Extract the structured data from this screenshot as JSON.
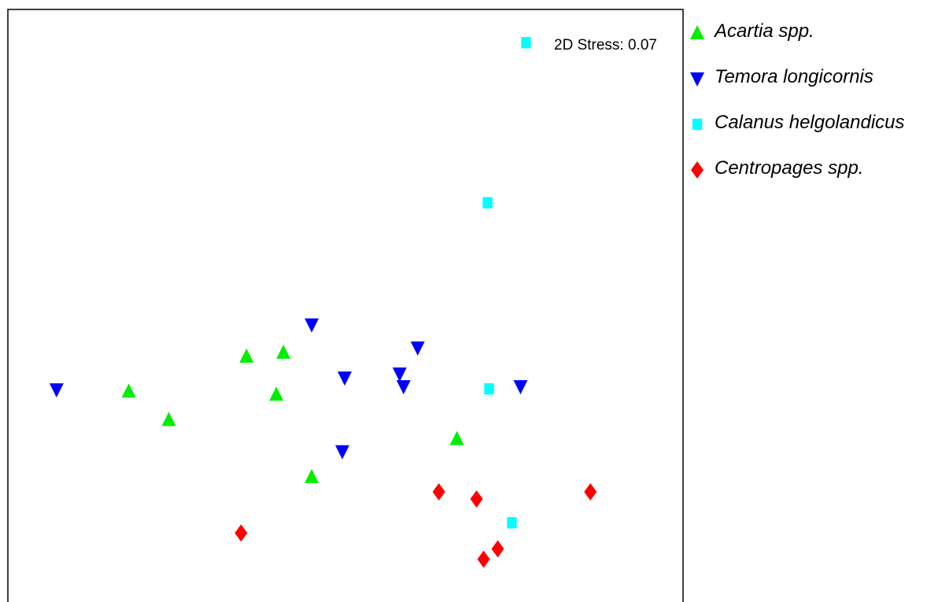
{
  "chart_data": {
    "type": "scatter",
    "title": "",
    "xlabel": "",
    "ylabel": "",
    "annotation": "2D Stress: 0.07",
    "axes_ticks": false,
    "grid": false,
    "legend_position": "right",
    "xlim": [
      0,
      860
    ],
    "ylim": [
      0,
      755
    ],
    "series": [
      {
        "name": "Acartia spp.",
        "marker": "triangle-up",
        "color": "#00ee00",
        "points": [
          {
            "x": 154,
            "y": 273
          },
          {
            "x": 205,
            "y": 237
          },
          {
            "x": 304,
            "y": 317
          },
          {
            "x": 351,
            "y": 322
          },
          {
            "x": 342,
            "y": 269
          },
          {
            "x": 387,
            "y": 165
          },
          {
            "x": 572,
            "y": 213
          }
        ]
      },
      {
        "name": "Temora longicornis",
        "marker": "triangle-down",
        "color": "#0000ff",
        "points": [
          {
            "x": 62,
            "y": 275
          },
          {
            "x": 387,
            "y": 357
          },
          {
            "x": 429,
            "y": 290
          },
          {
            "x": 426,
            "y": 197
          },
          {
            "x": 499,
            "y": 295
          },
          {
            "x": 504,
            "y": 279
          },
          {
            "x": 522,
            "y": 328
          },
          {
            "x": 653,
            "y": 279
          }
        ]
      },
      {
        "name": "Calanus helgolandicus",
        "marker": "square",
        "color": "#00ffff",
        "points": [
          {
            "x": 660,
            "y": 713
          },
          {
            "x": 611,
            "y": 511
          },
          {
            "x": 613,
            "y": 276
          },
          {
            "x": 642,
            "y": 107
          }
        ]
      },
      {
        "name": "Centropages spp.",
        "marker": "diamond",
        "color": "#ff0000",
        "points": [
          {
            "x": 297,
            "y": 94
          },
          {
            "x": 549,
            "y": 146
          },
          {
            "x": 597,
            "y": 137
          },
          {
            "x": 742,
            "y": 146
          },
          {
            "x": 624,
            "y": 74
          },
          {
            "x": 606,
            "y": 61
          }
        ]
      }
    ]
  }
}
